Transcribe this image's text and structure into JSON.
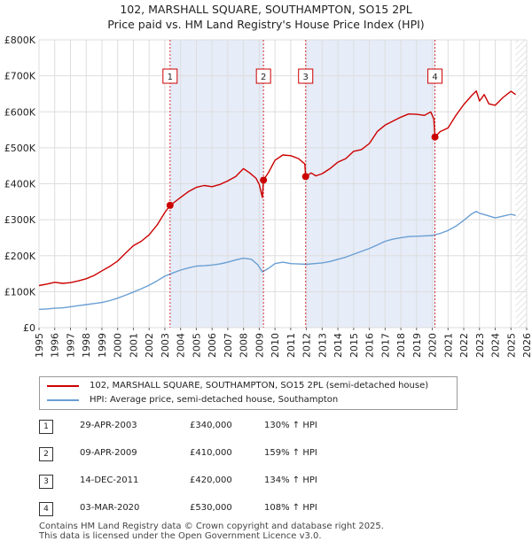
{
  "title_line1": "102, MARSHALL SQUARE, SOUTHAMPTON, SO15 2PL",
  "title_line2": "Price paid vs. HM Land Registry's House Price Index (HPI)",
  "colors": {
    "property": "#cc0000",
    "hpi": "#6a9fd4",
    "shade": "#e6ecf8"
  },
  "legend": {
    "property_label": "102, MARSHALL SQUARE, SOUTHAMPTON, SO15 2PL (semi-detached house)",
    "hpi_label": "HPI: Average price, semi-detached house, Southampton"
  },
  "sales": [
    {
      "num": "1",
      "date": "29-APR-2003",
      "price": "£340,000",
      "hpi_delta": "130% ↑ HPI"
    },
    {
      "num": "2",
      "date": "09-APR-2009",
      "price": "£410,000",
      "hpi_delta": "159% ↑ HPI"
    },
    {
      "num": "3",
      "date": "14-DEC-2011",
      "price": "£420,000",
      "hpi_delta": "134% ↑ HPI"
    },
    {
      "num": "4",
      "date": "03-MAR-2020",
      "price": "£530,000",
      "hpi_delta": "108% ↑ HPI"
    }
  ],
  "footer_line1": "Contains HM Land Registry data © Crown copyright and database right 2025.",
  "footer_line2": "This data is licensed under the Open Government Licence v3.0.",
  "chart_data": {
    "type": "line",
    "title": "102, MARSHALL SQUARE, SOUTHAMPTON, SO15 2PL — Price paid vs. HM Land Registry's House Price Index (HPI)",
    "xlabel": "",
    "ylabel": "",
    "xlim": [
      1995,
      2026
    ],
    "ylim": [
      0,
      800000
    ],
    "y_ticks": [
      {
        "value": 0,
        "label": "£0"
      },
      {
        "value": 100000,
        "label": "£100K"
      },
      {
        "value": 200000,
        "label": "£200K"
      },
      {
        "value": 300000,
        "label": "£300K"
      },
      {
        "value": 400000,
        "label": "£400K"
      },
      {
        "value": 500000,
        "label": "£500K"
      },
      {
        "value": 600000,
        "label": "£600K"
      },
      {
        "value": 700000,
        "label": "£700K"
      },
      {
        "value": 800000,
        "label": "£800K"
      }
    ],
    "x_ticks": [
      "1995",
      "1996",
      "1997",
      "1998",
      "1999",
      "2000",
      "2001",
      "2002",
      "2003",
      "2004",
      "2005",
      "2006",
      "2007",
      "2008",
      "2009",
      "2010",
      "2011",
      "2012",
      "2013",
      "2014",
      "2015",
      "2016",
      "2017",
      "2018",
      "2019",
      "2020",
      "2021",
      "2022",
      "2023",
      "2024",
      "2025",
      "2026"
    ],
    "grid": true,
    "shaded_ranges": [
      [
        2003.33,
        2009.27
      ],
      [
        2011.95,
        2020.17
      ]
    ],
    "hatched_from": 2025.3,
    "series": [
      {
        "name": "102, MARSHALL SQUARE, SOUTHAMPTON, SO15 2PL (semi-detached house)",
        "color": "#cc0000",
        "x": [
          1995.0,
          1995.5,
          1996.0,
          1996.5,
          1997.0,
          1997.5,
          1998.0,
          1998.5,
          1999.0,
          1999.5,
          2000.0,
          2000.5,
          2001.0,
          2001.5,
          2002.0,
          2002.5,
          2003.0,
          2003.33,
          2003.7,
          2004.0,
          2004.5,
          2005.0,
          2005.5,
          2006.0,
          2006.5,
          2007.0,
          2007.5,
          2008.0,
          2008.4,
          2008.8,
          2009.0,
          2009.2,
          2009.27,
          2009.6,
          2010.0,
          2010.5,
          2011.0,
          2011.5,
          2011.9,
          2011.95,
          2012.3,
          2012.6,
          2013.0,
          2013.5,
          2014.0,
          2014.5,
          2015.0,
          2015.5,
          2016.0,
          2016.5,
          2017.0,
          2017.5,
          2018.0,
          2018.5,
          2019.0,
          2019.5,
          2019.9,
          2020.1,
          2020.17,
          2020.5,
          2021.0,
          2021.5,
          2022.0,
          2022.5,
          2022.8,
          2023.0,
          2023.3,
          2023.6,
          2024.0,
          2024.5,
          2025.0,
          2025.3
        ],
        "values": [
          117000,
          121000,
          126000,
          123000,
          125000,
          130000,
          136000,
          145000,
          158000,
          170000,
          185000,
          207000,
          228000,
          240000,
          258000,
          285000,
          320000,
          340000,
          352000,
          362000,
          378000,
          390000,
          395000,
          392000,
          398000,
          408000,
          420000,
          442000,
          430000,
          415000,
          398000,
          362000,
          410000,
          432000,
          465000,
          480000,
          478000,
          470000,
          455000,
          420000,
          430000,
          422000,
          428000,
          442000,
          460000,
          470000,
          490000,
          495000,
          512000,
          545000,
          563000,
          574000,
          585000,
          594000,
          593000,
          590000,
          600000,
          580000,
          530000,
          545000,
          555000,
          590000,
          620000,
          645000,
          658000,
          630000,
          648000,
          622000,
          618000,
          640000,
          657000,
          648000
        ]
      },
      {
        "name": "HPI: Average price, semi-detached house, Southampton",
        "color": "#6a9fd4",
        "x": [
          1995.0,
          1995.5,
          1996.0,
          1996.5,
          1997.0,
          1997.5,
          1998.0,
          1998.5,
          1999.0,
          1999.5,
          2000.0,
          2000.5,
          2001.0,
          2001.5,
          2002.0,
          2002.5,
          2003.0,
          2003.5,
          2004.0,
          2004.5,
          2005.0,
          2005.5,
          2006.0,
          2006.5,
          2007.0,
          2007.5,
          2008.0,
          2008.5,
          2008.9,
          2009.2,
          2009.6,
          2010.0,
          2010.5,
          2011.0,
          2011.5,
          2012.0,
          2012.5,
          2013.0,
          2013.5,
          2014.0,
          2014.5,
          2015.0,
          2015.5,
          2016.0,
          2016.5,
          2017.0,
          2017.5,
          2018.0,
          2018.5,
          2019.0,
          2019.5,
          2020.0,
          2020.5,
          2021.0,
          2021.5,
          2022.0,
          2022.5,
          2022.8,
          2023.0,
          2023.5,
          2024.0,
          2024.5,
          2025.0,
          2025.3
        ],
        "values": [
          51000,
          52000,
          54000,
          55000,
          58000,
          61000,
          64000,
          67000,
          70000,
          75000,
          82000,
          90000,
          99000,
          108000,
          118000,
          130000,
          143000,
          152000,
          160000,
          166000,
          171000,
          172000,
          174000,
          177000,
          182000,
          188000,
          193000,
          190000,
          175000,
          155000,
          165000,
          178000,
          182000,
          178000,
          177000,
          176000,
          178000,
          180000,
          184000,
          190000,
          196000,
          204000,
          212000,
          220000,
          230000,
          240000,
          246000,
          250000,
          253000,
          254000,
          255000,
          256000,
          262000,
          270000,
          282000,
          298000,
          316000,
          323000,
          318000,
          312000,
          305000,
          310000,
          315000,
          312000
        ]
      }
    ],
    "sale_markers": [
      {
        "label": "1",
        "x": 2003.33,
        "y": 340000
      },
      {
        "label": "2",
        "x": 2009.27,
        "y": 410000
      },
      {
        "label": "3",
        "x": 2011.95,
        "y": 420000
      },
      {
        "label": "4",
        "x": 2020.17,
        "y": 530000
      }
    ]
  }
}
